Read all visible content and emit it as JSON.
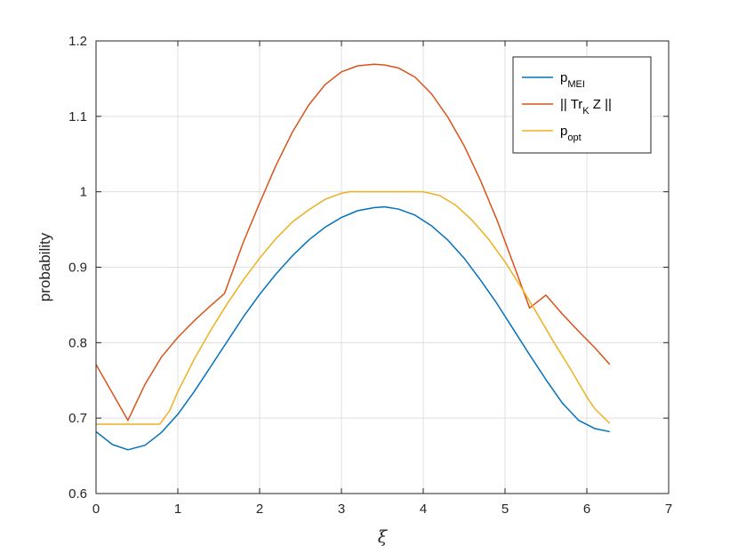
{
  "chart_data": {
    "type": "line",
    "title": "",
    "xlabel": "ξ",
    "ylabel": "probability",
    "xlim": [
      0,
      7
    ],
    "ylim": [
      0.6,
      1.2
    ],
    "xticks": [
      "0",
      "1",
      "2",
      "3",
      "4",
      "5",
      "6",
      "7"
    ],
    "yticks": [
      "0.6",
      "0.7",
      "0.8",
      "0.9",
      "1",
      "1.1",
      "1.2"
    ],
    "grid": true,
    "legend_position": "top-right",
    "series": [
      {
        "name": "p_MEI",
        "name_main": "p",
        "name_sub": "MEI",
        "color": "#0072BD",
        "x": [
          0,
          0.2,
          0.39,
          0.6,
          0.8,
          1.0,
          1.2,
          1.4,
          1.6,
          1.8,
          2.0,
          2.2,
          2.4,
          2.6,
          2.8,
          3.0,
          3.2,
          3.4,
          3.53,
          3.7,
          3.9,
          4.1,
          4.3,
          4.5,
          4.7,
          4.9,
          5.1,
          5.3,
          5.5,
          5.7,
          5.9,
          6.1,
          6.28
        ],
        "y": [
          0.682,
          0.665,
          0.658,
          0.664,
          0.681,
          0.705,
          0.735,
          0.768,
          0.801,
          0.834,
          0.864,
          0.891,
          0.915,
          0.936,
          0.953,
          0.966,
          0.975,
          0.979,
          0.98,
          0.977,
          0.969,
          0.955,
          0.936,
          0.912,
          0.883,
          0.852,
          0.818,
          0.784,
          0.751,
          0.72,
          0.697,
          0.686,
          0.682
        ]
      },
      {
        "name": "|| Tr_K Z ||",
        "name_main": "|| Tr",
        "name_sub": "K",
        "name_tail": " Z ||",
        "color": "#D95319",
        "x": [
          0,
          0.39,
          0.6,
          0.8,
          1.0,
          1.2,
          1.4,
          1.57,
          1.8,
          2.0,
          2.2,
          2.4,
          2.6,
          2.8,
          3.0,
          3.2,
          3.4,
          3.53,
          3.7,
          3.9,
          4.1,
          4.3,
          4.5,
          4.7,
          4.9,
          5.1,
          5.3,
          5.5,
          5.7,
          5.9,
          6.1,
          6.28
        ],
        "y": [
          0.771,
          0.697,
          0.745,
          0.781,
          0.807,
          0.829,
          0.849,
          0.865,
          0.933,
          0.985,
          1.035,
          1.079,
          1.115,
          1.142,
          1.159,
          1.167,
          1.169,
          1.168,
          1.164,
          1.152,
          1.13,
          1.099,
          1.061,
          1.015,
          0.963,
          0.905,
          0.846,
          0.863,
          0.838,
          0.815,
          0.793,
          0.771
        ]
      },
      {
        "name": "p_opt",
        "name_main": "p",
        "name_sub": "opt",
        "color": "#EDB120",
        "x": [
          0,
          0.2,
          0.4,
          0.6,
          0.78,
          0.9,
          1.0,
          1.2,
          1.4,
          1.6,
          1.8,
          2.0,
          2.2,
          2.4,
          2.6,
          2.8,
          3.0,
          3.1,
          3.3,
          3.5,
          3.7,
          3.9,
          4.0,
          4.2,
          4.4,
          4.6,
          4.8,
          5.0,
          5.2,
          5.4,
          5.6,
          5.8,
          6.0,
          6.1,
          6.28
        ],
        "y": [
          0.692,
          0.692,
          0.692,
          0.692,
          0.692,
          0.71,
          0.735,
          0.778,
          0.816,
          0.851,
          0.883,
          0.912,
          0.938,
          0.96,
          0.976,
          0.99,
          0.998,
          1.0,
          1.0,
          1.0,
          1.0,
          1.0,
          1.0,
          0.995,
          0.982,
          0.962,
          0.937,
          0.907,
          0.873,
          0.837,
          0.8,
          0.765,
          0.728,
          0.712,
          0.693
        ]
      }
    ]
  }
}
